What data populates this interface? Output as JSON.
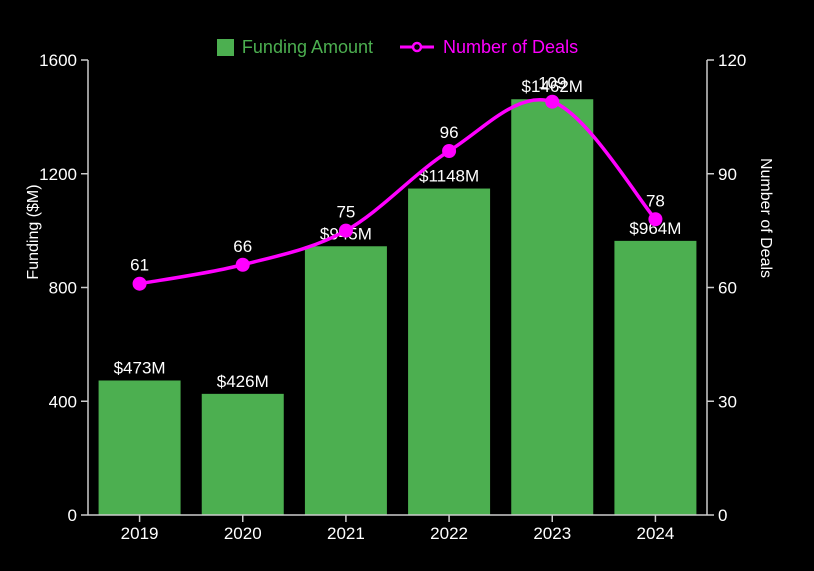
{
  "chart_data": {
    "type": "bar",
    "combo": "bar+line",
    "title": "",
    "categories": [
      "2019",
      "2020",
      "2021",
      "2022",
      "2023",
      "2024"
    ],
    "series": [
      {
        "name": "Funding Amount",
        "type": "bar",
        "axis": "left",
        "color": "#4CAF50",
        "values": [
          473,
          426,
          945,
          1148,
          1462,
          964
        ],
        "point_labels": [
          "$473M",
          "$426M",
          "$945M",
          "$1148M",
          "$1462M",
          "$964M"
        ]
      },
      {
        "name": "Number of Deals",
        "type": "line",
        "axis": "right",
        "color": "#FF00FF",
        "values": [
          61,
          66,
          75,
          96,
          109,
          78
        ],
        "point_labels": [
          "61",
          "66",
          "75",
          "96",
          "109",
          "78"
        ]
      }
    ],
    "left_axis": {
      "label": "Funding ($M)",
      "min": 0,
      "max": 1600,
      "ticks": [
        0,
        400,
        800,
        1200,
        1600
      ]
    },
    "right_axis": {
      "label": "Number of Deals",
      "min": 0,
      "max": 120,
      "ticks": [
        0,
        30,
        60,
        90,
        120
      ]
    },
    "x_axis": {
      "tick_labels": [
        "2019",
        "2020",
        "2021",
        "2022",
        "2023",
        "2024"
      ]
    },
    "legend": {
      "position": "top-center",
      "entries": [
        "Funding Amount",
        "Number of Deals"
      ]
    },
    "grid": false,
    "colors": {
      "background": "#000000",
      "text": "#FFFFFF",
      "axis": "#CCCCCC"
    }
  }
}
